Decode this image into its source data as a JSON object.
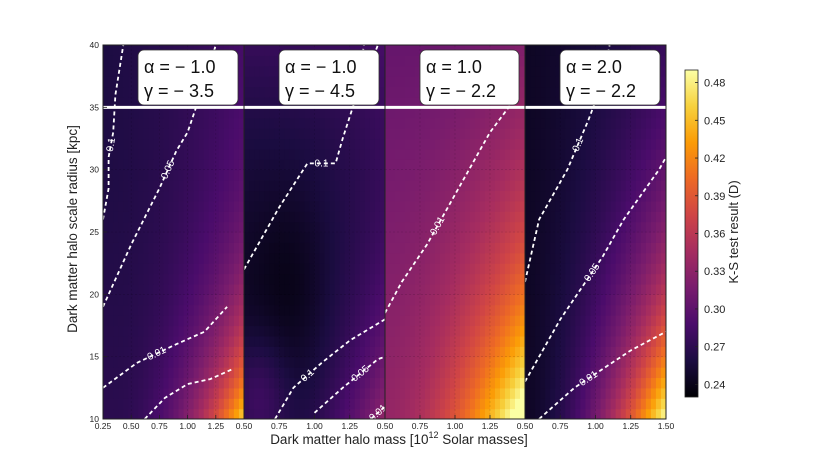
{
  "chart_data": {
    "type": "heatmap",
    "xlabel": "Dark matter halo mass [10",
    "xlabel_sup": "12",
    "xlabel_tail": " Solar masses]",
    "ylabel": "Dark matter halo scale radius [kpc]",
    "colorbar_label": "K-S test result (D)",
    "ylim": [
      10,
      40
    ],
    "y_ticks": [
      "10",
      "15",
      "20",
      "25",
      "30",
      "35",
      "40"
    ],
    "x_tick_labels": [
      [
        "0.25",
        "0.50",
        "0.75",
        "1.00",
        "1.25"
      ],
      [
        "0.50",
        "0.75",
        "1.00",
        "1.25"
      ],
      [
        "0.50",
        "0.75",
        "1.00",
        "1.25"
      ],
      [
        "0.50",
        "0.75",
        "1.00",
        "1.25",
        "1.50"
      ]
    ],
    "colorbar_ticks": [
      "0.24",
      "0.27",
      "0.30",
      "0.33",
      "0.36",
      "0.39",
      "0.42",
      "0.45",
      "0.48"
    ],
    "colorbar_range": [
      0.23,
      0.49
    ],
    "horizontal_line_y": 35,
    "colors": {
      "colormap": [
        "#000004",
        "#1b0c41",
        "#4a0c6b",
        "#781c6d",
        "#a52c60",
        "#cf4446",
        "#ed6925",
        "#fb9b06",
        "#f7d13d",
        "#fcffa4"
      ],
      "contour": "#ffffff"
    },
    "panels": [
      {
        "alpha_label": "α = − 1.0",
        "gamma_label": "γ = − 3.5",
        "xrange": [
          0.25,
          1.5
        ],
        "grid": {
          "base": 0.25,
          "cx": 0.38,
          "cy": 0.28,
          "gx": 0.075,
          "gy": 0.075,
          "bump": [
            0.2,
            0.23,
            3.0,
            0.55
          ]
        },
        "contours": [
          {
            "label": "0.1",
            "points": [
              [
                0.25,
                26
              ],
              [
                0.3,
                28.5
              ],
              [
                0.3,
                31
              ],
              [
                0.34,
                33
              ],
              [
                0.36,
                36
              ],
              [
                0.43,
                40
              ]
            ]
          },
          {
            "label": "0.05",
            "points": [
              [
                0.25,
                19
              ],
              [
                0.5,
                24
              ],
              [
                0.75,
                28.5
              ],
              [
                0.9,
                31.5
              ],
              [
                1.0,
                33
              ],
              [
                1.15,
                37
              ],
              [
                1.25,
                40
              ]
            ]
          },
          {
            "label": "0.01",
            "points": [
              [
                0.25,
                12.5
              ],
              [
                0.55,
                14.5
              ],
              [
                0.9,
                16
              ],
              [
                1.15,
                17
              ],
              [
                1.35,
                19
              ]
            ]
          },
          {
            "label": "",
            "points": [
              [
                0.62,
                10
              ],
              [
                0.8,
                11.7
              ],
              [
                1.0,
                12.8
              ],
              [
                1.2,
                13.2
              ],
              [
                1.4,
                14
              ]
            ]
          }
        ]
      },
      {
        "alpha_label": "α = − 1.0",
        "gamma_label": "γ = − 4.5",
        "xrange": [
          0.5,
          1.5
        ],
        "grid": {
          "base": 0.245,
          "cx": 0.42,
          "cy": 0.26,
          "gx": 0.078,
          "gy": 0.075,
          "bump": [
            0.55,
            0.22,
            0.25,
            -0.012
          ]
        },
        "contours": [
          {
            "label": "0.1",
            "points": [
              [
                0.5,
                22
              ],
              [
                0.75,
                27
              ],
              [
                0.95,
                30.5
              ],
              [
                1.15,
                30.5
              ],
              [
                1.2,
                32.5
              ],
              [
                1.3,
                36
              ],
              [
                1.35,
                40
              ]
            ]
          },
          {
            "label": "",
            "points": [
              [
                1.35,
                37
              ],
              [
                1.45,
                40
              ]
            ]
          },
          {
            "label": "0.1",
            "points": [
              [
                0.72,
                10
              ],
              [
                0.85,
                12.5
              ],
              [
                1.05,
                14.5
              ],
              [
                1.25,
                16.3
              ],
              [
                1.5,
                18
              ]
            ]
          },
          {
            "label": "0.05",
            "points": [
              [
                1.0,
                10.5
              ],
              [
                1.2,
                12.5
              ],
              [
                1.45,
                14.8
              ],
              [
                1.5,
                15
              ]
            ]
          },
          {
            "label": "0.01",
            "points": [
              [
                1.4,
                10
              ],
              [
                1.5,
                11
              ]
            ]
          }
        ]
      },
      {
        "alpha_label": "α = 1.0",
        "gamma_label": "γ = − 2.2",
        "xrange": [
          0.5,
          1.5
        ],
        "grid": {
          "base": 0.3,
          "cx": 0.98,
          "cy": 0.035,
          "gx": 0.42,
          "gy": 0.9,
          "bump": [
            0.5,
            0.08,
            0.08,
            0.03
          ]
        },
        "contours": [
          {
            "label": "0.01",
            "points": [
              [
                0.5,
                18.5
              ],
              [
                0.62,
                21
              ],
              [
                0.8,
                24
              ],
              [
                0.95,
                27
              ],
              [
                1.1,
                30
              ],
              [
                1.25,
                33
              ],
              [
                1.45,
                36
              ]
            ]
          }
        ]
      },
      {
        "alpha_label": "α = 2.0",
        "gamma_label": "γ = − 2.2",
        "xrange": [
          0.5,
          1.5
        ],
        "grid": {
          "base": 0.24,
          "cx": 0.94,
          "cy": 0.03,
          "gx": 0.23,
          "gy": 0.2,
          "bump": [
            0.5,
            0.15,
            0.1,
            0.02
          ]
        },
        "contours": [
          {
            "label": "0.1",
            "points": [
              [
                0.5,
                21
              ],
              [
                0.6,
                26
              ],
              [
                0.8,
                30
              ],
              [
                0.95,
                34
              ],
              [
                1.05,
                37
              ],
              [
                1.1,
                40
              ]
            ]
          },
          {
            "label": "0.05",
            "points": [
              [
                0.5,
                13
              ],
              [
                0.75,
                18
              ],
              [
                0.9,
                20.5
              ],
              [
                1.05,
                23
              ],
              [
                1.2,
                26
              ],
              [
                1.45,
                30
              ],
              [
                1.5,
                31
              ]
            ]
          },
          {
            "label": "0.01",
            "points": [
              [
                0.6,
                10
              ],
              [
                0.85,
                12.5
              ],
              [
                1.05,
                14
              ],
              [
                1.25,
                15.5
              ],
              [
                1.5,
                17
              ]
            ]
          }
        ]
      }
    ]
  }
}
